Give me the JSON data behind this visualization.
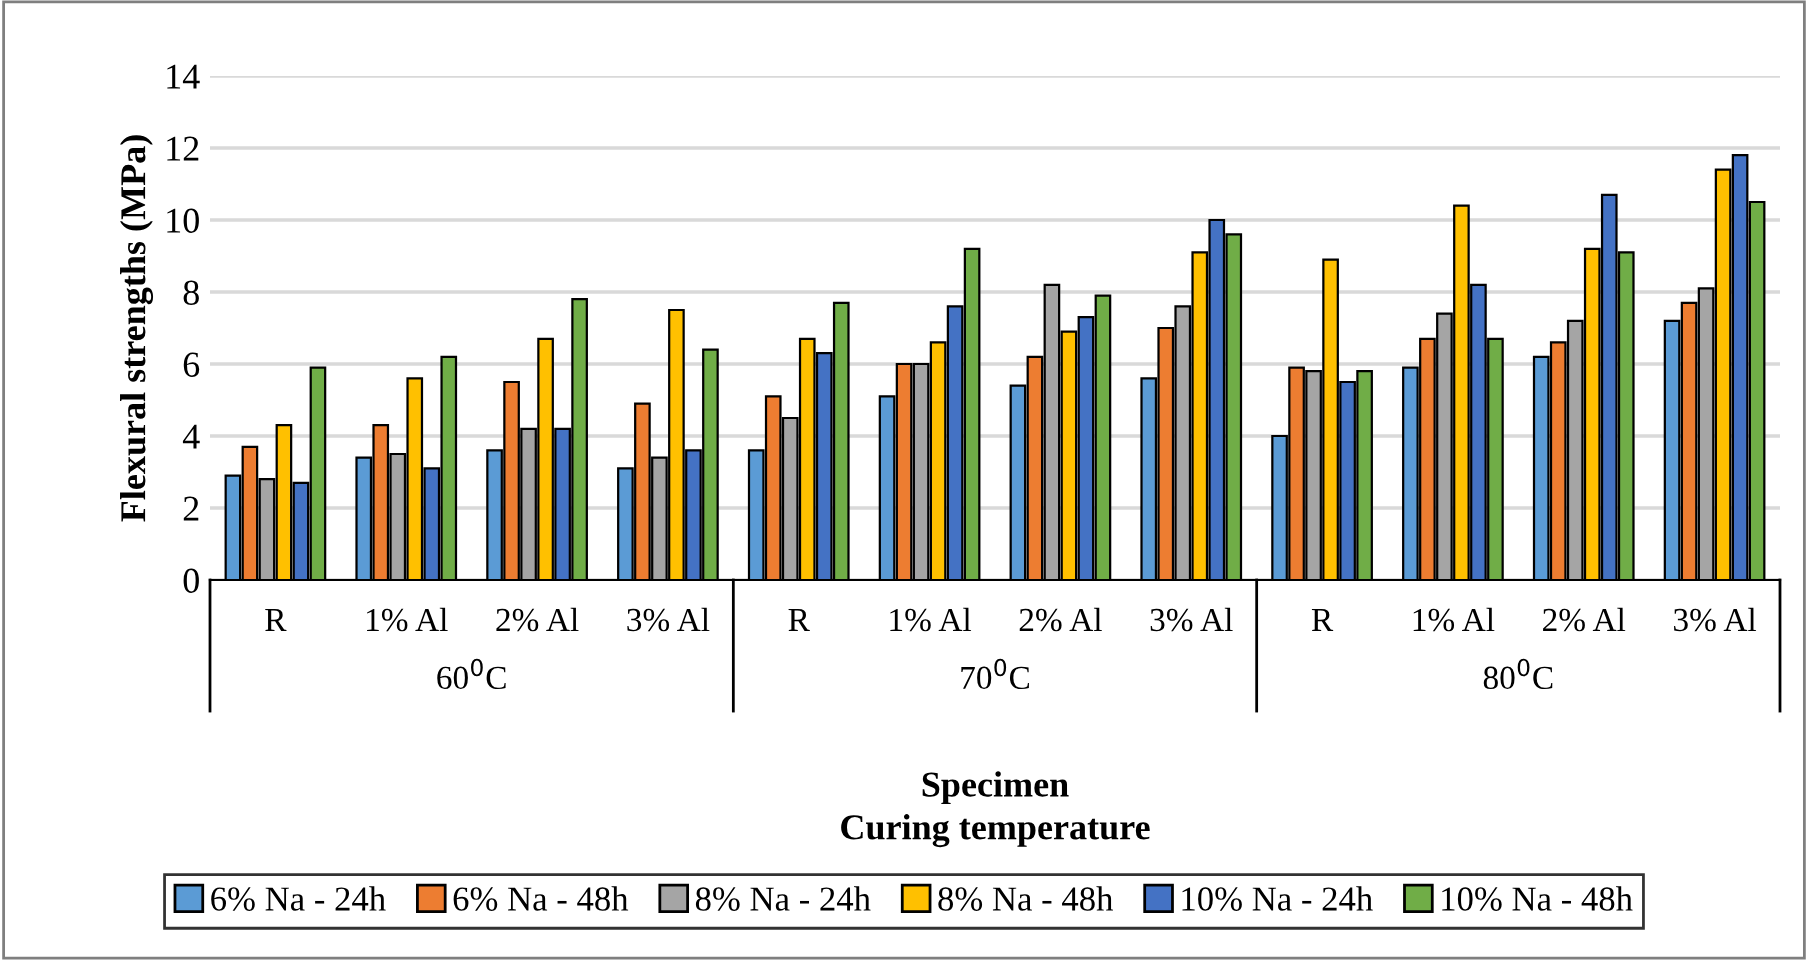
{
  "chart_data": {
    "type": "bar",
    "xlabel": "Specimen\nCuring temperature",
    "ylabel": "Flexural strengths (MPa)",
    "categories": [
      "R",
      "1% Al",
      "2% Al",
      "3% Al",
      "R",
      "1% Al",
      "2% Al",
      "3% Al",
      "R",
      "1% Al",
      "2% Al",
      "3% Al"
    ],
    "annotations": [
      "60$^{0}$C",
      "70$^{0}$C",
      "80$^{0}$C"
    ],
    "series": [
      {
        "name": "6% Na - 24h",
        "color": "#5b9bd5",
        "values": [
          2.9,
          3.4,
          3.6,
          3.1,
          3.6,
          5.1,
          5.4,
          5.6,
          4.0,
          5.9,
          6.2,
          7.2
        ]
      },
      {
        "name": "6% Na - 48h",
        "color": "#ed7d31",
        "values": [
          3.7,
          4.3,
          5.5,
          4.9,
          5.1,
          6.0,
          6.2,
          7.0,
          5.9,
          6.7,
          6.6,
          7.7
        ]
      },
      {
        "name": "8% Na - 24h",
        "color": "#a5a5a5",
        "values": [
          2.8,
          3.5,
          4.2,
          3.4,
          4.5,
          6.0,
          8.2,
          7.6,
          5.8,
          7.4,
          7.2,
          8.1
        ]
      },
      {
        "name": "8% Na - 48h",
        "color": "#ffc000",
        "values": [
          4.3,
          5.6,
          6.7,
          7.5,
          6.7,
          6.6,
          6.9,
          9.1,
          8.9,
          10.4,
          9.2,
          11.4
        ]
      },
      {
        "name": "10% Na - 24h",
        "color": "#4472c4",
        "values": [
          2.7,
          3.1,
          4.2,
          3.6,
          6.3,
          7.6,
          7.3,
          10.0,
          5.5,
          8.2,
          10.7,
          11.8
        ]
      },
      {
        "name": "10% Na - 48h",
        "color": "#70ad47",
        "values": [
          5.9,
          6.2,
          7.8,
          6.4,
          7.7,
          9.2,
          7.9,
          9.6,
          5.8,
          6.7,
          9.1,
          10.5
        ]
      }
    ],
    "ylim": [
      0,
      14
    ],
    "yticks": [
      0,
      2,
      4,
      6,
      8,
      10,
      12,
      14
    ],
    "grid": "y",
    "legend": "bottom"
  }
}
